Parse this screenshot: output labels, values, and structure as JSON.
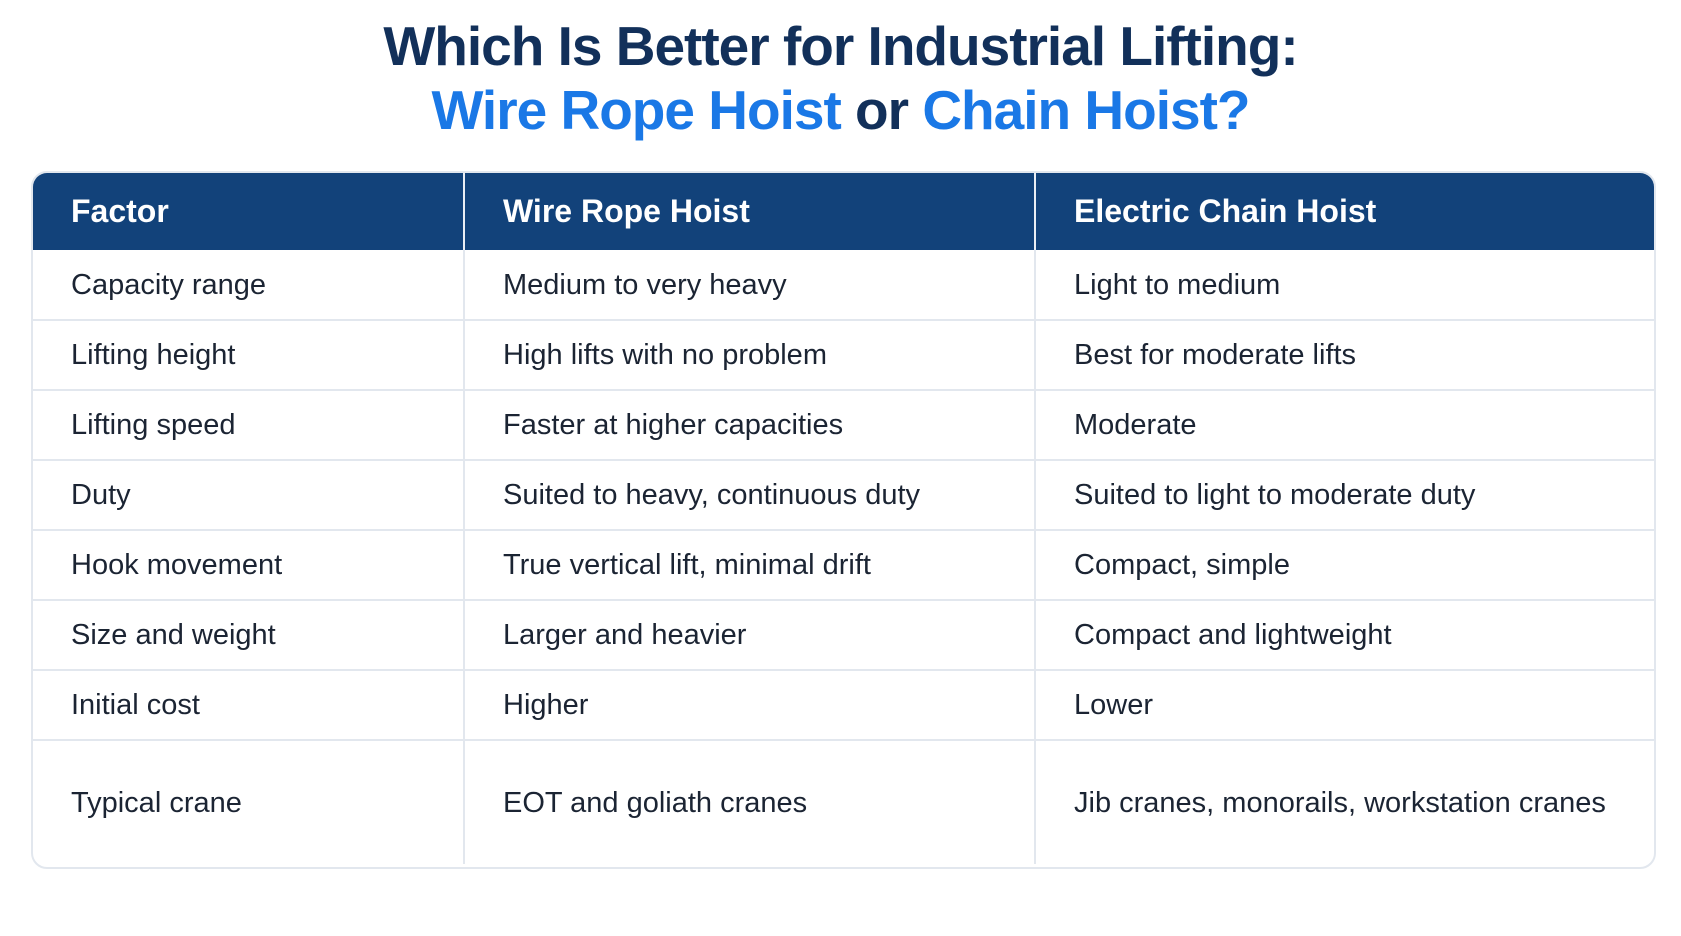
{
  "title": {
    "line1": "Which Is Better for Industrial Lifting:",
    "option_a": "Wire Rope Hoist",
    "joiner": "or",
    "option_b": "Chain Hoist?"
  },
  "colors": {
    "navy": "#12305a",
    "accent_blue": "#1a78e6",
    "header_bg": "#12427a"
  },
  "table": {
    "headers": [
      "Factor",
      "Wire Rope Hoist",
      "Electric Chain Hoist"
    ],
    "rows": [
      [
        "Capacity range",
        "Medium to very heavy",
        "Light to medium"
      ],
      [
        "Lifting height",
        "High lifts with no problem",
        "Best for moderate lifts"
      ],
      [
        "Lifting speed",
        "Faster at higher capacities",
        "Moderate"
      ],
      [
        "Duty",
        "Suited to heavy, continuous duty",
        "Suited to light to moderate duty"
      ],
      [
        "Hook movement",
        "True vertical lift, minimal drift",
        "Compact, simple"
      ],
      [
        "Size and weight",
        "Larger and heavier",
        "Compact and lightweight"
      ],
      [
        "Initial cost",
        "Higher",
        "Lower"
      ],
      [
        "Typical crane",
        "EOT and goliath cranes",
        "Jib cranes, monorails, workstation cranes"
      ]
    ]
  }
}
